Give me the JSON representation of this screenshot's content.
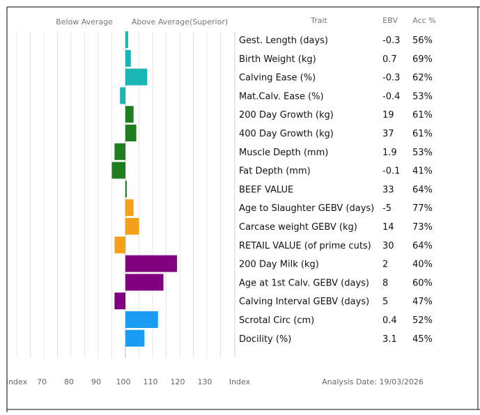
{
  "chart_data": {
    "type": "bar",
    "orientation": "horizontal",
    "baseline": 100,
    "xlim": [
      60,
      140
    ],
    "x_ticks": [
      70,
      80,
      90,
      100,
      110,
      120,
      130
    ],
    "grid": true,
    "header_below": "Below Average",
    "header_above": "Above Average(Superior)",
    "xlabel_left": "Index",
    "xlabel_right": "Index",
    "columns": {
      "trait": "Trait",
      "ebv": "EBV",
      "acc": "Acc %"
    },
    "analysis_date": "Analysis Date: 19/03/2026",
    "rows": [
      {
        "trait": "Gest. Length (days)",
        "ebv": "-0.3",
        "acc": "56%",
        "index": 101,
        "color": "#1ab5b5"
      },
      {
        "trait": "Birth Weight (kg)",
        "ebv": "0.7",
        "acc": "69%",
        "index": 102,
        "color": "#1ab5b5"
      },
      {
        "trait": "Calving Ease (%)",
        "ebv": "-0.3",
        "acc": "62%",
        "index": 108,
        "color": "#1ab5b5"
      },
      {
        "trait": "Mat.Calv. Ease (%)",
        "ebv": "-0.4",
        "acc": "53%",
        "index": 98,
        "color": "#1ab5b5"
      },
      {
        "trait": "200 Day Growth (kg)",
        "ebv": "19",
        "acc": "61%",
        "index": 103,
        "color": "#1e7d1e"
      },
      {
        "trait": "400 Day Growth (kg)",
        "ebv": "37",
        "acc": "61%",
        "index": 104,
        "color": "#1e7d1e"
      },
      {
        "trait": "Muscle Depth (mm)",
        "ebv": "1.9",
        "acc": "53%",
        "index": 96,
        "color": "#1e7d1e"
      },
      {
        "trait": "Fat Depth (mm)",
        "ebv": "-0.1",
        "acc": "41%",
        "index": 95,
        "color": "#1e7d1e"
      },
      {
        "trait": "BEEF VALUE",
        "ebv": "33",
        "acc": "64%",
        "index": 100.5,
        "color": "#1e7d1e"
      },
      {
        "trait": "Age to Slaughter GEBV (days)",
        "ebv": "-5",
        "acc": "77%",
        "index": 103,
        "color": "#f5a01a"
      },
      {
        "trait": "Carcase weight GEBV (kg)",
        "ebv": "14",
        "acc": "73%",
        "index": 105,
        "color": "#f5a01a"
      },
      {
        "trait": "RETAIL VALUE (of prime cuts)",
        "ebv": "30",
        "acc": "64%",
        "index": 96,
        "color": "#f5a01a"
      },
      {
        "trait": "200 Day Milk (kg)",
        "ebv": "2",
        "acc": "40%",
        "index": 119,
        "color": "#800080"
      },
      {
        "trait": "Age at 1st Calv. GEBV (days)",
        "ebv": "8",
        "acc": "60%",
        "index": 114,
        "color": "#800080"
      },
      {
        "trait": "Calving Interval GEBV (days)",
        "ebv": "5",
        "acc": "47%",
        "index": 96,
        "color": "#800080"
      },
      {
        "trait": "Scrotal Circ (cm)",
        "ebv": "0.4",
        "acc": "52%",
        "index": 112,
        "color": "#1a9cf5"
      },
      {
        "trait": "Docility (%)",
        "ebv": "3.1",
        "acc": "45%",
        "index": 107,
        "color": "#1a9cf5"
      }
    ]
  }
}
